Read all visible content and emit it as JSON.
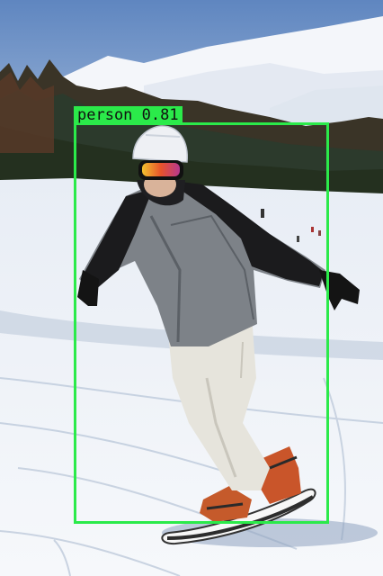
{
  "image": {
    "description_free": true
  },
  "detections": [
    {
      "class_label": "person",
      "confidence": "0.81",
      "box_color": "#2bea4a"
    }
  ],
  "colors": {
    "sky": "#6b8fc4",
    "snow": "#f3f6fb",
    "jacket_gray": "#7d8288",
    "jacket_black": "#1b1b1d",
    "pants": "#e6e4dc",
    "board_orange": "#d9602a"
  }
}
